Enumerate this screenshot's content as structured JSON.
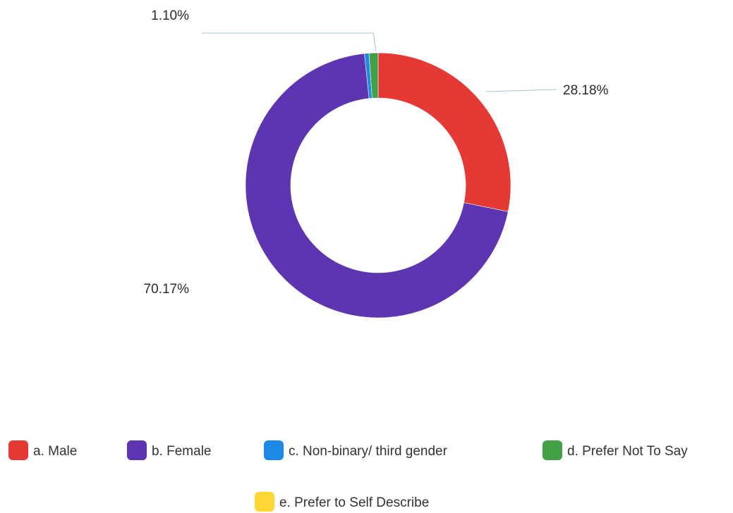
{
  "chart_data": {
    "type": "pie",
    "variant": "donut",
    "categories": [
      "a. Male",
      "b. Female",
      "c. Non-binary/ third gender",
      "d. Prefer Not To Say",
      "e. Prefer to Self Describe"
    ],
    "values": [
      28.18,
      70.17,
      0.55,
      1.1,
      0
    ],
    "data_labels": [
      "28.18%",
      "70.17%",
      "",
      "1.10%",
      ""
    ],
    "colors": [
      "#e53935",
      "#5e35b1",
      "#1e88e5",
      "#43a047",
      "#fdd835"
    ],
    "legend": {
      "placement": "bottom",
      "entries": [
        {
          "label": "a. Male",
          "color": "#e53935"
        },
        {
          "label": "b. Female",
          "color": "#5e35b1"
        },
        {
          "label": "c. Non-binary/ third gender",
          "color": "#1e88e5"
        },
        {
          "label": "d. Prefer Not To Say",
          "color": "#43a047"
        },
        {
          "label": "e. Prefer to Self Describe",
          "color": "#fdd835"
        }
      ]
    }
  }
}
